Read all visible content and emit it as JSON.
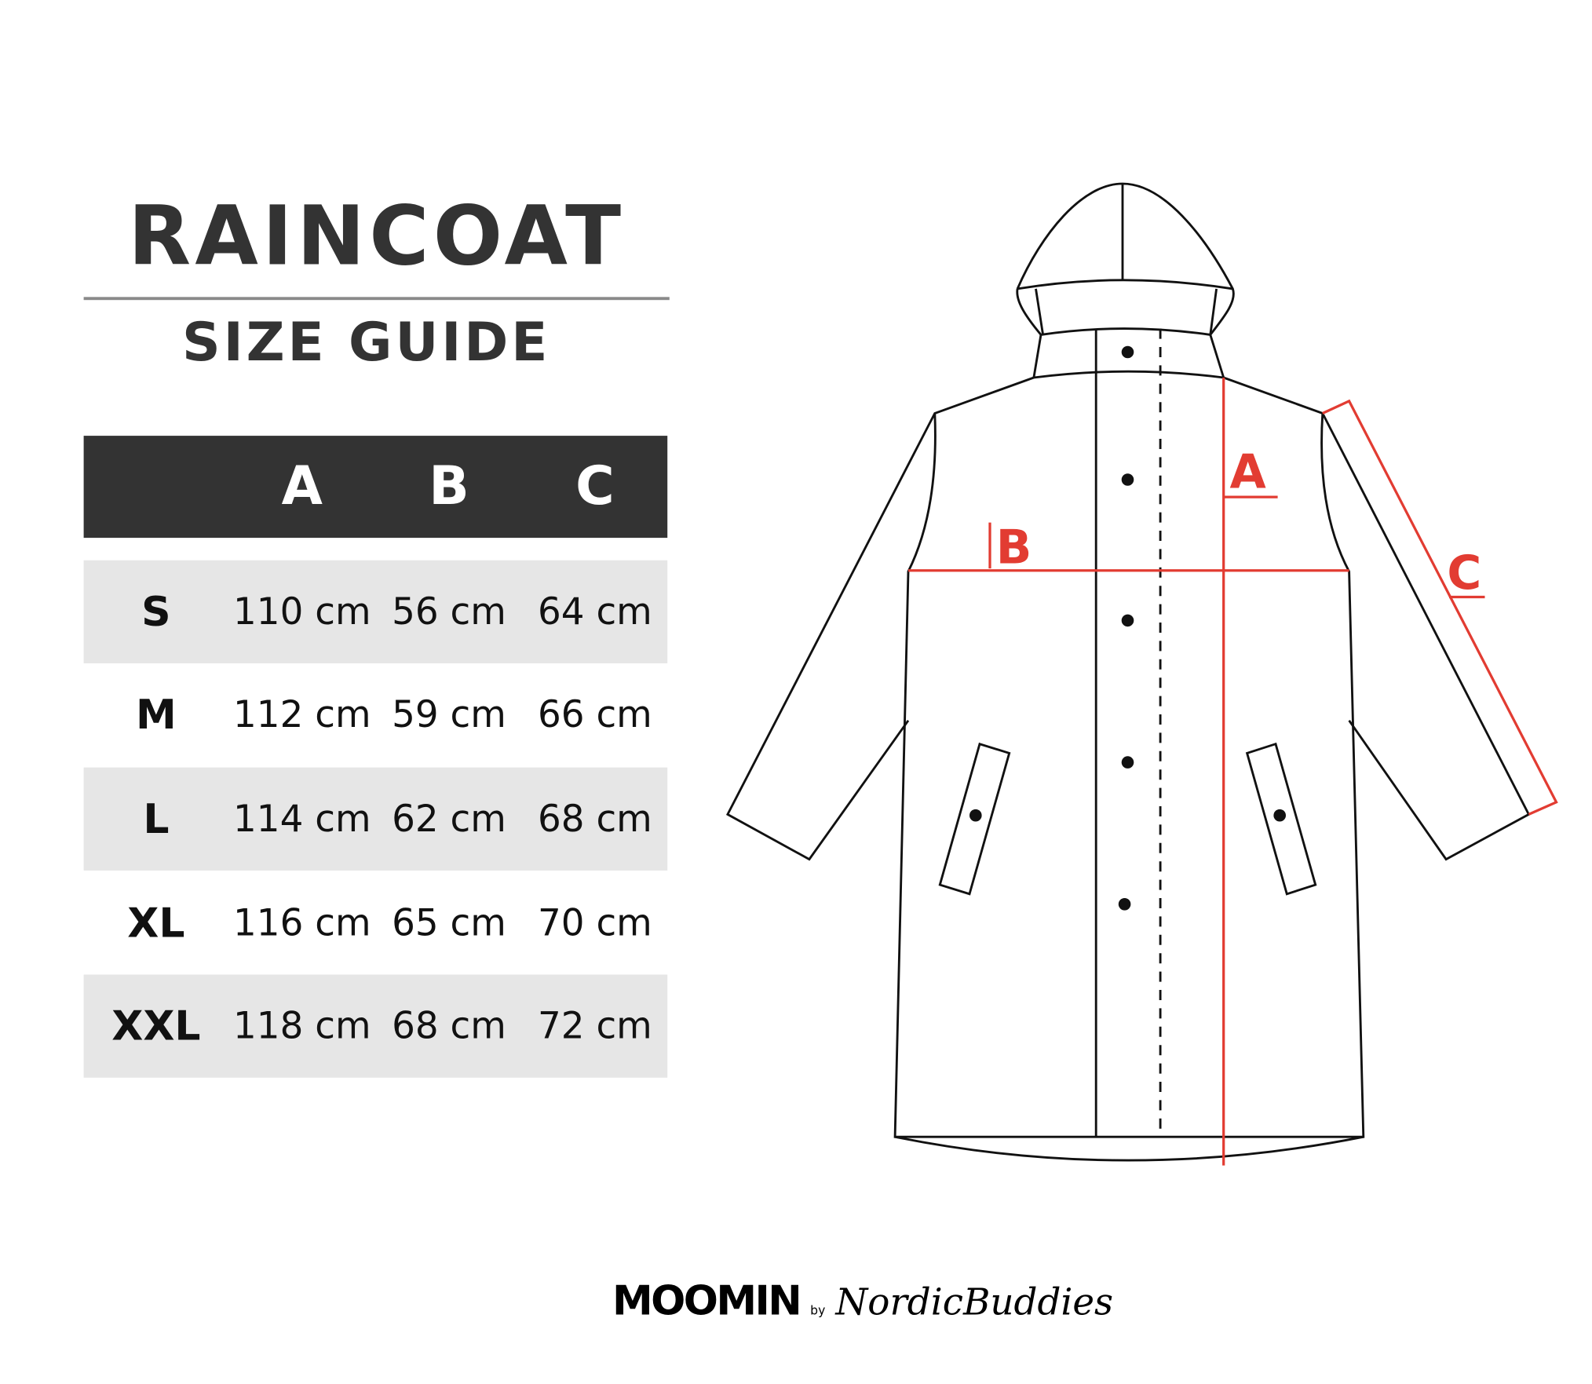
{
  "title": "RAINCOAT",
  "subtitle": "SIZE GUIDE",
  "table": {
    "headers": [
      "",
      "A",
      "B",
      "C"
    ],
    "rows": [
      {
        "size": "S",
        "a": "110 cm",
        "b": "56 cm",
        "c": "64 cm"
      },
      {
        "size": "M",
        "a": "112 cm",
        "b": "59 cm",
        "c": "66 cm"
      },
      {
        "size": "L",
        "a": "114 cm",
        "b": "62 cm",
        "c": "68 cm"
      },
      {
        "size": "XL",
        "a": "116 cm",
        "b": "65 cm",
        "c": "70 cm"
      },
      {
        "size": "XXL",
        "a": "118 cm",
        "b": "68 cm",
        "c": "72 cm"
      }
    ]
  },
  "diagram": {
    "labels": {
      "a": "A",
      "b": "B",
      "c": "C"
    },
    "measure_color": "#e23c32"
  },
  "logo": {
    "brand": "MOOMIN",
    "by": "by",
    "partner": "NordicBuddies"
  }
}
